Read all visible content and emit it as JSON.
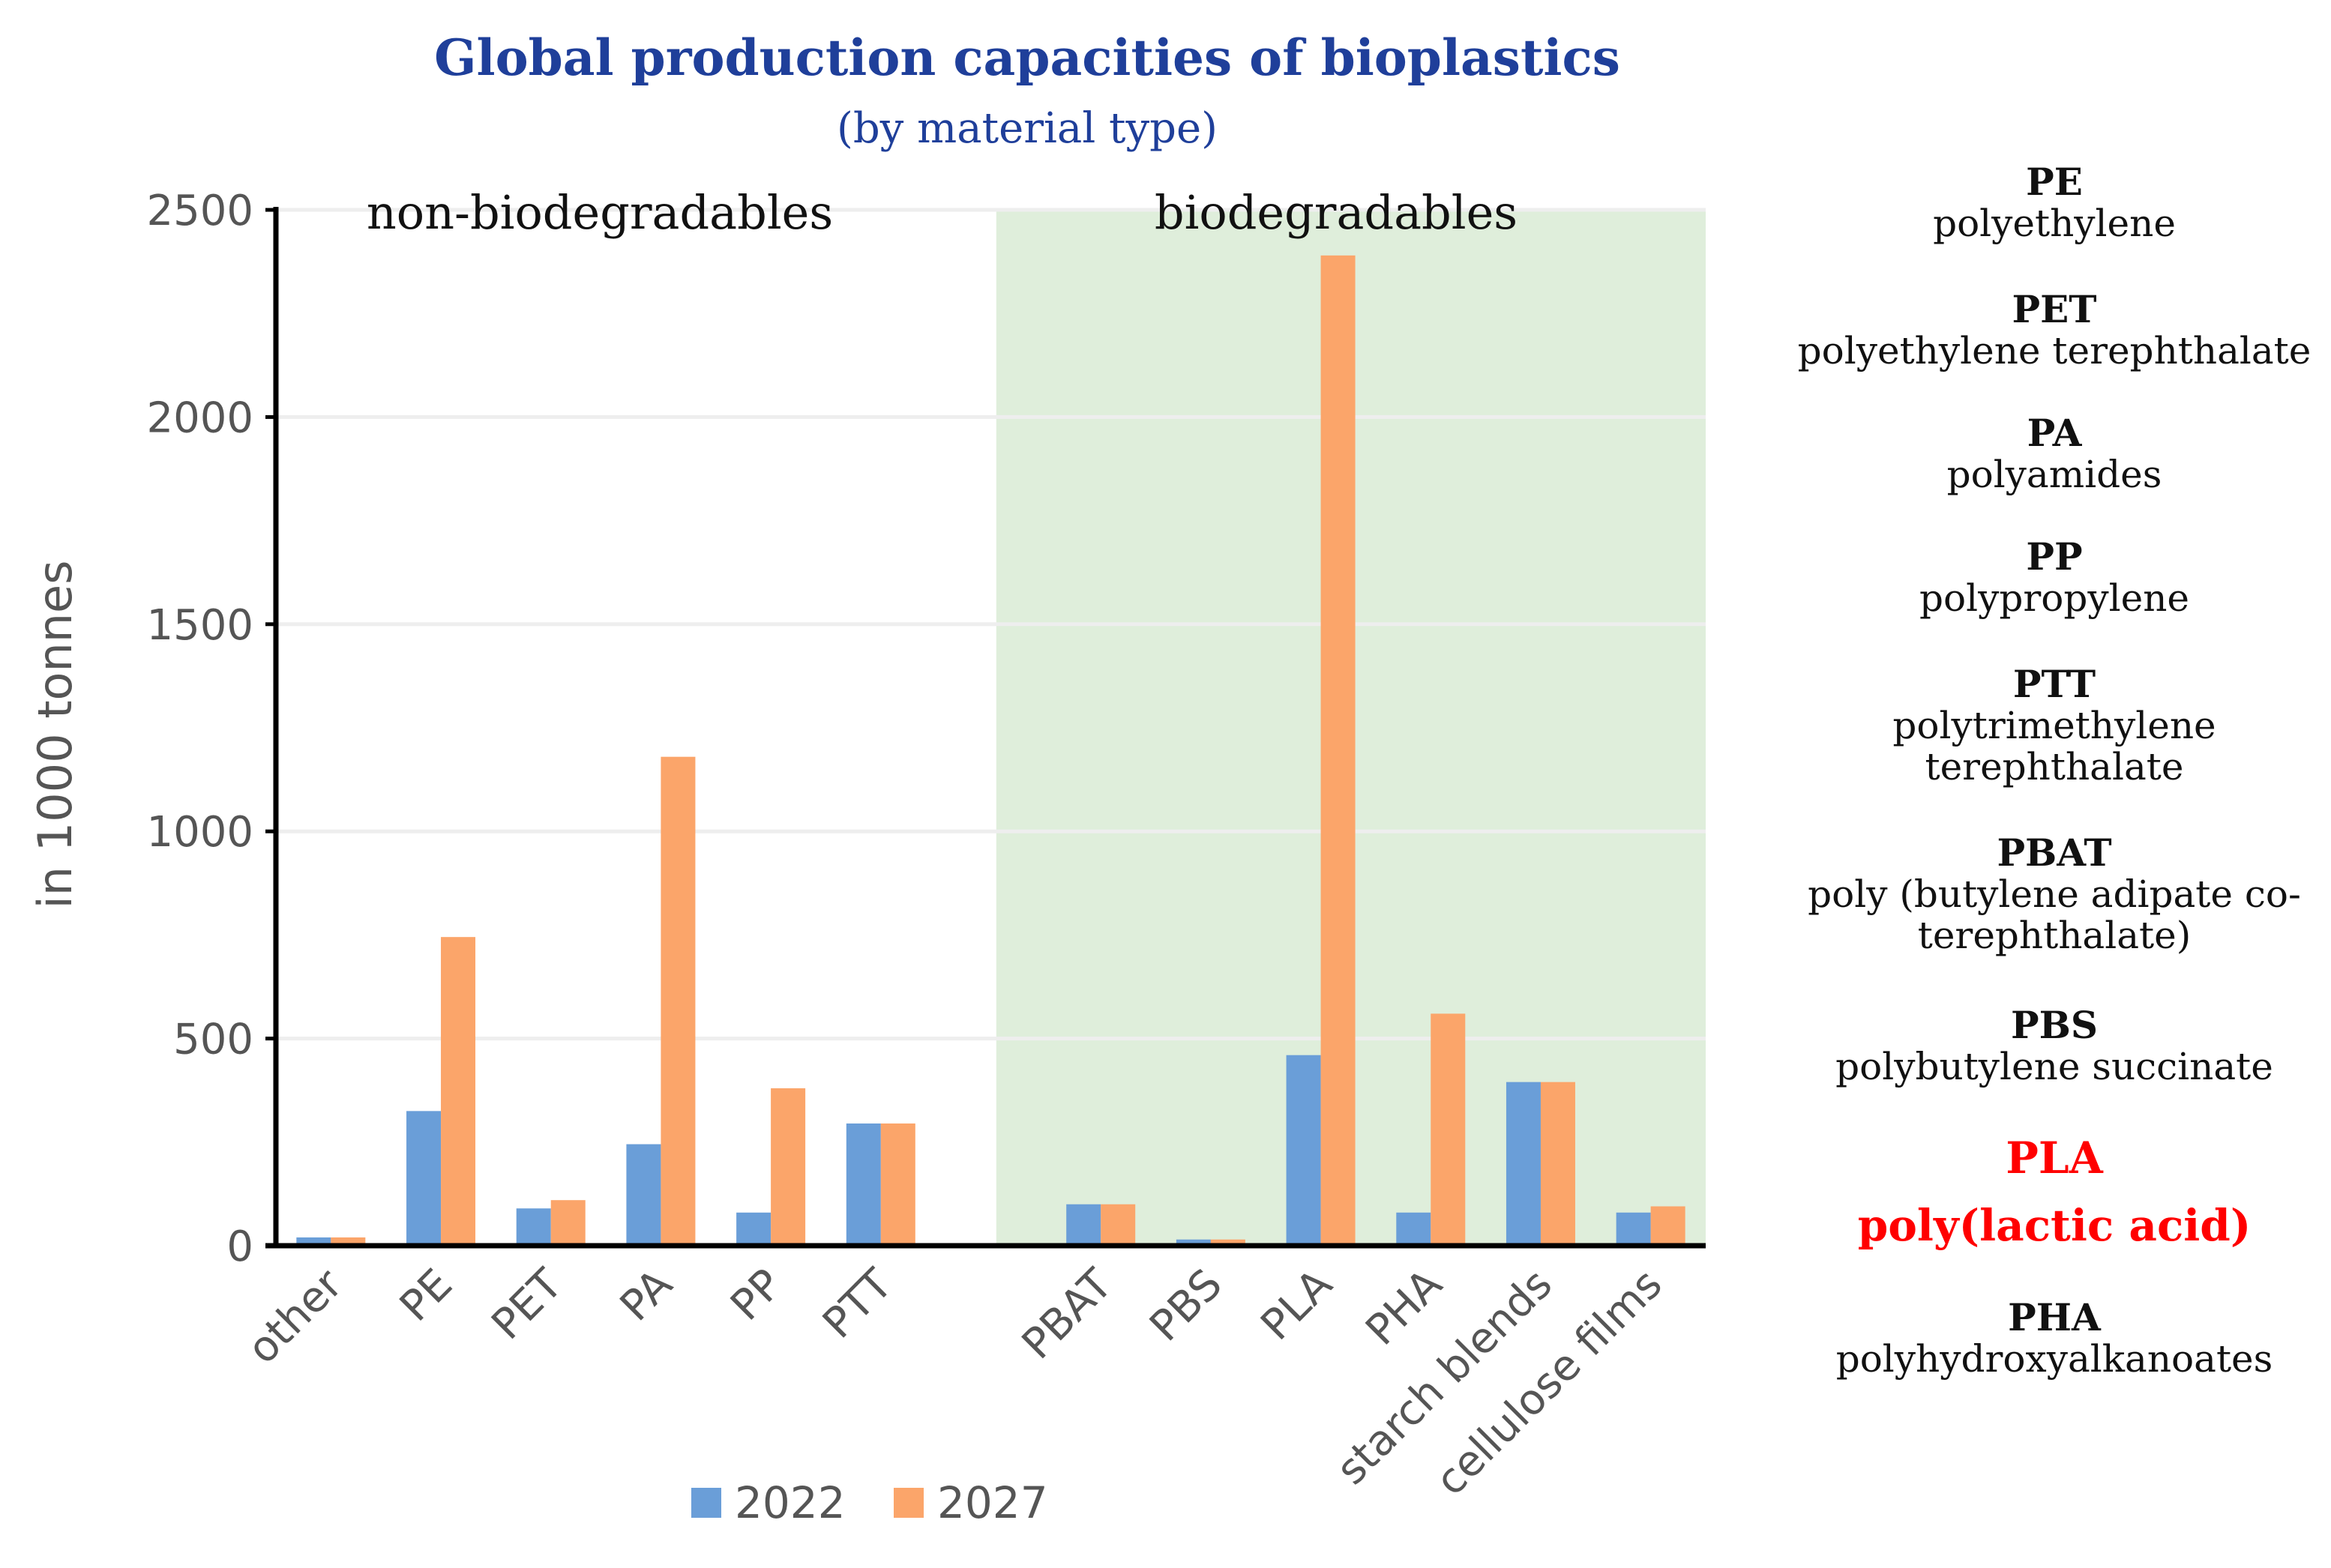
{
  "colors": {
    "series_2022": "#6a9ed8",
    "series_2027": "#fba56a",
    "bio_region": "#dfeedb",
    "grid": "#eeeeee",
    "title": "#1f3f9a",
    "highlight": "#ff0000",
    "text": "#111111"
  },
  "chart_data": {
    "type": "bar",
    "title": "Global production capacities of bioplastics",
    "subtitle": "(by material type)",
    "xlabel": "",
    "ylabel": "in 1000 tonnes",
    "ylim": [
      0,
      2500
    ],
    "yticks": [
      "0",
      "500",
      "1000",
      "1500",
      "2000",
      "2500"
    ],
    "grid": true,
    "legend_position": "bottom",
    "regions": [
      {
        "label": "non-biodegradables",
        "shaded": false
      },
      {
        "label": "biodegradables",
        "shaded": true
      }
    ],
    "categories": [
      "other",
      "PE",
      "PET",
      "PA",
      "PP",
      "PTT",
      "",
      "PBAT",
      "PBS",
      "PLA",
      "PHA",
      "starch blends",
      "cellulose films"
    ],
    "series": [
      {
        "name": "2022",
        "values": [
          20,
          325,
          90,
          245,
          80,
          295,
          0,
          100,
          15,
          460,
          80,
          395,
          80
        ]
      },
      {
        "name": "2027",
        "values": [
          20,
          745,
          110,
          1180,
          380,
          295,
          0,
          100,
          15,
          2390,
          560,
          395,
          95
        ]
      }
    ]
  },
  "glossary": [
    {
      "abbr": "PE",
      "full": [
        "polyethylene"
      ],
      "highlight": false
    },
    {
      "abbr": "PET",
      "full": [
        "polyethylene terephthalate"
      ],
      "highlight": false
    },
    {
      "abbr": "PA",
      "full": [
        "polyamides"
      ],
      "highlight": false
    },
    {
      "abbr": "PP",
      "full": [
        "polypropylene"
      ],
      "highlight": false
    },
    {
      "abbr": "PTT",
      "full": [
        "polytrimethylene",
        "terephthalate"
      ],
      "highlight": false
    },
    {
      "abbr": "PBAT",
      "full": [
        "poly (butylene adipate co-",
        "terephthalate)"
      ],
      "highlight": false
    },
    {
      "abbr": "PBS",
      "full": [
        "polybutylene succinate"
      ],
      "highlight": false
    },
    {
      "abbr": "PLA",
      "full": [
        "poly(lactic acid)"
      ],
      "highlight": true
    },
    {
      "abbr": "PHA",
      "full": [
        "polyhydroxyalkanoates"
      ],
      "highlight": false
    }
  ]
}
